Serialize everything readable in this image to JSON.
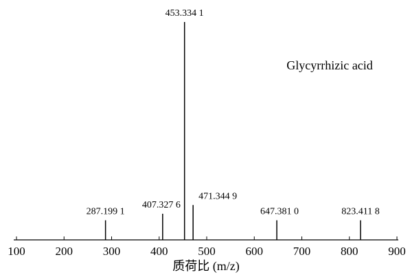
{
  "chart_data": {
    "type": "stick",
    "x": [
      287.1991,
      407.3276,
      453.3341,
      471.3449,
      647.381,
      823.4118
    ],
    "x_labels": [
      "287.199 1",
      "407.327 6",
      "453.334 1",
      "471.344 9",
      "647.381 0",
      "823.411 8"
    ],
    "values": [
      9,
      12,
      100,
      16,
      9,
      9
    ],
    "xlim": [
      100,
      900
    ],
    "xticks": [
      100,
      200,
      300,
      400,
      500,
      600,
      700,
      800,
      900
    ],
    "xlabel": "质荷比 (m/z)",
    "annotation": "Glycyrrhizic acid",
    "color": "#000000"
  }
}
